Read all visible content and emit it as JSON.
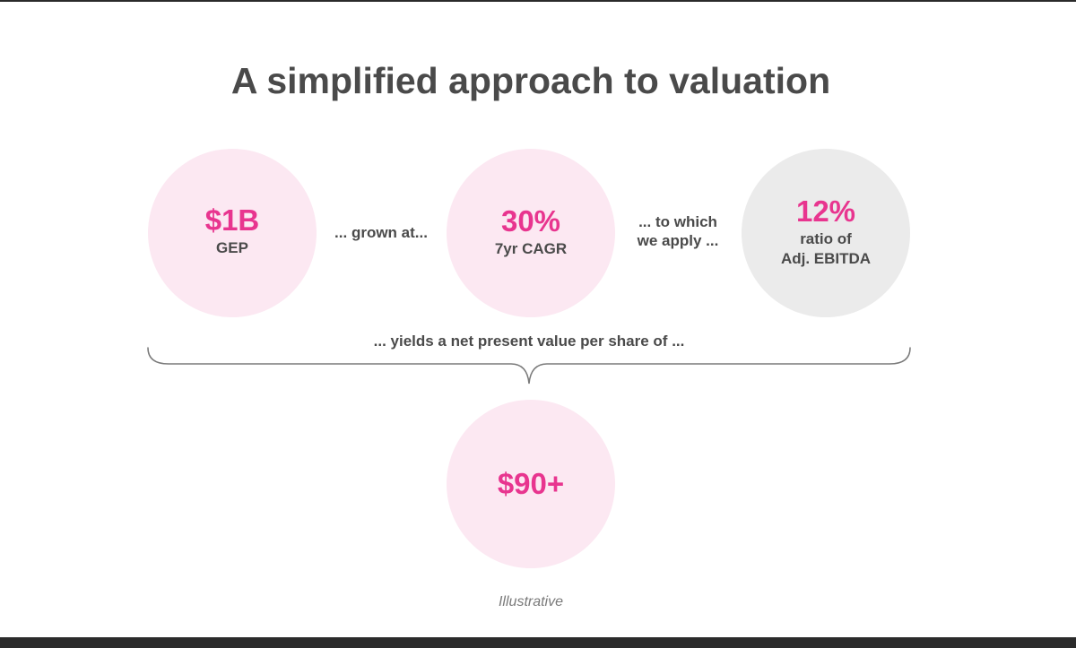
{
  "slide": {
    "title": "A simplified approach to valuation",
    "footnote": "Illustrative"
  },
  "steps": [
    {
      "value": "$1B",
      "label": "GEP",
      "fill": "#fce8f2"
    },
    {
      "value": "30%",
      "label": "7yr CAGR",
      "fill": "#fce8f2"
    },
    {
      "value": "12%",
      "label_line1": "ratio of",
      "label_line2": "Adj. EBITDA",
      "fill": "#ebebeb"
    }
  ],
  "connectors": {
    "first": "... grown at...",
    "second_line1": "... to which",
    "second_line2": "we apply ...",
    "yields": "... yields a net present value per share of ..."
  },
  "result": {
    "value": "$90+",
    "fill": "#fce8f2"
  },
  "colors": {
    "accent": "#e8358f",
    "text": "#4a4a4a",
    "pink_fill": "#fce8f2",
    "grey_fill": "#ebebeb",
    "border": "#2b2b2b"
  }
}
